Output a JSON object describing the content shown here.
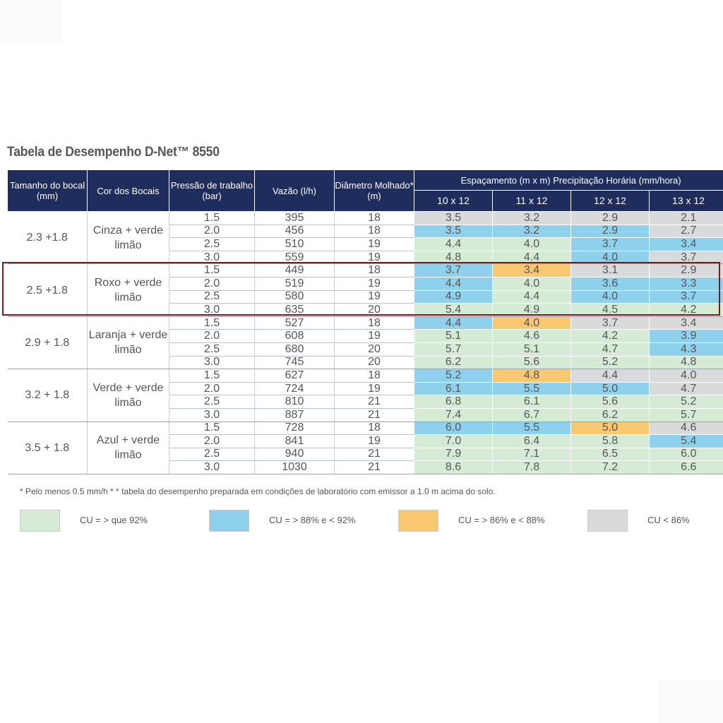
{
  "title": "Tabela de Desempenho D-Net™ 8550",
  "headers": {
    "nozzle": "Tamanho do bocal (mm)",
    "color": "Cor dos Bocais",
    "pressure": "Pressão de trabalho (bar)",
    "flow": "Vazão (l/h)",
    "diameter": "Diâmetro Molhado* (m)",
    "spacing_group": "Espaçamento  (m x m) Precipitação Horária (mm/hora)",
    "spacings": [
      "10 x 12",
      "11 x 12",
      "12 x 12",
      "13 x 12"
    ]
  },
  "groups": [
    {
      "nozzle": "2.3 +1.8",
      "color": "Cinza + verde limão",
      "rows": [
        {
          "pressure": "1.5",
          "flow": "395",
          "diameter": "18",
          "values": [
            "3.5",
            "3.2",
            "2.9",
            "2.1"
          ],
          "cu": [
            "gray",
            "gray",
            "gray",
            "gray"
          ]
        },
        {
          "pressure": "2.0",
          "flow": "456",
          "diameter": "18",
          "values": [
            "3.5",
            "3.2",
            "2.9",
            "2.7"
          ],
          "cu": [
            "blue",
            "blue",
            "blue",
            "gray"
          ]
        },
        {
          "pressure": "2.5",
          "flow": "510",
          "diameter": "19",
          "values": [
            "4.4",
            "4.0",
            "3.7",
            "3.4"
          ],
          "cu": [
            "green",
            "green",
            "blue",
            "blue"
          ]
        },
        {
          "pressure": "3.0",
          "flow": "559",
          "diameter": "19",
          "values": [
            "4.8",
            "4.4",
            "4.0",
            "3.7"
          ],
          "cu": [
            "green",
            "green",
            "blue",
            "gray"
          ]
        }
      ]
    },
    {
      "nozzle": "2.5 +1.8",
      "color": "Roxo + verde limão",
      "rows": [
        {
          "pressure": "1.5",
          "flow": "449",
          "diameter": "18",
          "values": [
            "3.7",
            "3.4",
            "3.1",
            "2.9"
          ],
          "cu": [
            "blue",
            "orange",
            "gray",
            "gray"
          ]
        },
        {
          "pressure": "2.0",
          "flow": "519",
          "diameter": "19",
          "values": [
            "4.4",
            "4.0",
            "3.6",
            "3.3"
          ],
          "cu": [
            "blue",
            "green",
            "blue",
            "blue"
          ]
        },
        {
          "pressure": "2.5",
          "flow": "580",
          "diameter": "19",
          "values": [
            "4.9",
            "4.4",
            "4.0",
            "3.7"
          ],
          "cu": [
            "blue",
            "green",
            "blue",
            "blue"
          ]
        },
        {
          "pressure": "3.0",
          "flow": "635",
          "diameter": "20",
          "values": [
            "5.4",
            "4.9",
            "4.5",
            "4.2"
          ],
          "cu": [
            "green",
            "green",
            "green",
            "green"
          ]
        }
      ]
    },
    {
      "nozzle": "2.9 + 1.8",
      "color": "Laranja + verde limão",
      "rows": [
        {
          "pressure": "1.5",
          "flow": "527",
          "diameter": "18",
          "values": [
            "4.4",
            "4.0",
            "3.7",
            "3.4"
          ],
          "cu": [
            "blue",
            "orange",
            "gray",
            "gray"
          ]
        },
        {
          "pressure": "2.0",
          "flow": "608",
          "diameter": "19",
          "values": [
            "5.1",
            "4.6",
            "4.2",
            "3.9"
          ],
          "cu": [
            "green",
            "green",
            "green",
            "blue"
          ]
        },
        {
          "pressure": "2.5",
          "flow": "680",
          "diameter": "20",
          "values": [
            "5.7",
            "5.1",
            "4.7",
            "4.3"
          ],
          "cu": [
            "green",
            "green",
            "green",
            "blue"
          ]
        },
        {
          "pressure": "3.0",
          "flow": "745",
          "diameter": "20",
          "values": [
            "6.2",
            "5.6",
            "5.2",
            "4.8"
          ],
          "cu": [
            "green",
            "green",
            "green",
            "green"
          ]
        }
      ]
    },
    {
      "nozzle": "3.2 + 1.8",
      "color": "Verde + verde limão",
      "rows": [
        {
          "pressure": "1.5",
          "flow": "627",
          "diameter": "18",
          "values": [
            "5.2",
            "4.8",
            "4.4",
            "4.0"
          ],
          "cu": [
            "blue",
            "orange",
            "gray",
            "gray"
          ]
        },
        {
          "pressure": "2.0",
          "flow": "724",
          "diameter": "19",
          "values": [
            "6.1",
            "5.5",
            "5.0",
            "4.7"
          ],
          "cu": [
            "blue",
            "blue",
            "blue",
            "gray"
          ]
        },
        {
          "pressure": "2.5",
          "flow": "810",
          "diameter": "21",
          "values": [
            "6.8",
            "6.1",
            "5.6",
            "5.2"
          ],
          "cu": [
            "green",
            "green",
            "green",
            "green"
          ]
        },
        {
          "pressure": "3.0",
          "flow": "887",
          "diameter": "21",
          "values": [
            "7.4",
            "6.7",
            "6.2",
            "5.7"
          ],
          "cu": [
            "green",
            "green",
            "green",
            "green"
          ]
        }
      ]
    },
    {
      "nozzle": "3.5 + 1.8",
      "color": "Azul + verde limão",
      "rows": [
        {
          "pressure": "1.5",
          "flow": "728",
          "diameter": "18",
          "values": [
            "6.0",
            "5.5",
            "5.0",
            "4.6"
          ],
          "cu": [
            "blue",
            "blue",
            "orange",
            "gray"
          ]
        },
        {
          "pressure": "2.0",
          "flow": "841",
          "diameter": "19",
          "values": [
            "7.0",
            "6.4",
            "5.8",
            "5.4"
          ],
          "cu": [
            "green",
            "green",
            "green",
            "blue"
          ]
        },
        {
          "pressure": "2.5",
          "flow": "940",
          "diameter": "21",
          "values": [
            "7.9",
            "7.1",
            "6.5",
            "6.0"
          ],
          "cu": [
            "green",
            "green",
            "green",
            "green"
          ]
        },
        {
          "pressure": "3.0",
          "flow": "1030",
          "diameter": "21",
          "values": [
            "8.6",
            "7.8",
            "7.2",
            "6.6"
          ],
          "cu": [
            "green",
            "green",
            "green",
            "green"
          ]
        }
      ]
    }
  ],
  "footnote": "* Pelo menos 0.5 mm/h * *  tabela do desempenho preparada em condições de laboratório com emissor a 1.0 m acima do solo.",
  "legend": [
    {
      "key": "green",
      "label": "CU = > que 92%",
      "color": "#d6ebd6"
    },
    {
      "key": "blue",
      "label": "CU = > 88% e < 92%",
      "color": "#8fd0ec"
    },
    {
      "key": "orange",
      "label": "CU = > 86% e < 88%",
      "color": "#f8c870"
    },
    {
      "key": "gray",
      "label": "CU < 86%",
      "color": "#d9dadc"
    }
  ],
  "colors": {
    "header_bg": "#1f2d5c",
    "highlight_border": "#7d1a1f"
  }
}
